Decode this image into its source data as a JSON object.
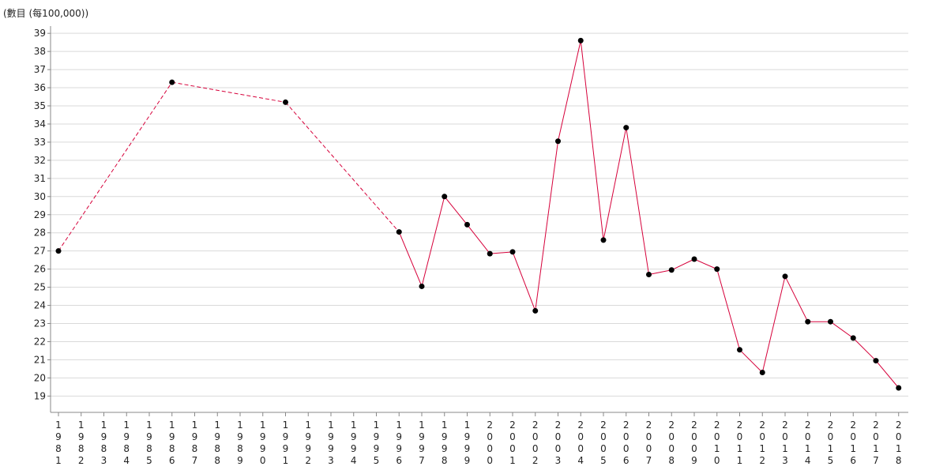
{
  "chart_data": {
    "type": "line",
    "unit_label": "(數目 (每100,000))",
    "title": "",
    "xlabel": "",
    "ylabel": "",
    "x": [
      "1981",
      "1982",
      "1983",
      "1984",
      "1985",
      "1986",
      "1987",
      "1988",
      "1989",
      "1990",
      "1991",
      "1992",
      "1993",
      "1994",
      "1995",
      "1996",
      "1997",
      "1998",
      "1999",
      "2000",
      "2001",
      "2002",
      "2003",
      "2004",
      "2005",
      "2006",
      "2007",
      "2008",
      "2009",
      "2010",
      "2011",
      "2012",
      "2013",
      "2014",
      "2015",
      "2016",
      "2017",
      "2018"
    ],
    "yticks": [
      19,
      20,
      21,
      22,
      23,
      24,
      25,
      26,
      27,
      28,
      29,
      30,
      31,
      32,
      33,
      34,
      35,
      36,
      37,
      38,
      39
    ],
    "ylim": [
      18.1,
      39.4
    ],
    "grid": true,
    "legend": "none",
    "series": [
      {
        "color": "#d6003a",
        "values": [
          27.0,
          null,
          null,
          null,
          null,
          36.3,
          null,
          null,
          null,
          null,
          35.2,
          null,
          null,
          null,
          null,
          28.05,
          25.05,
          30.0,
          28.45,
          26.85,
          26.95,
          23.7,
          33.05,
          38.6,
          27.6,
          33.8,
          25.7,
          25.95,
          26.55,
          26.0,
          21.55,
          20.3,
          25.6,
          23.1,
          23.1,
          22.2,
          20.95,
          19.45
        ]
      }
    ]
  }
}
